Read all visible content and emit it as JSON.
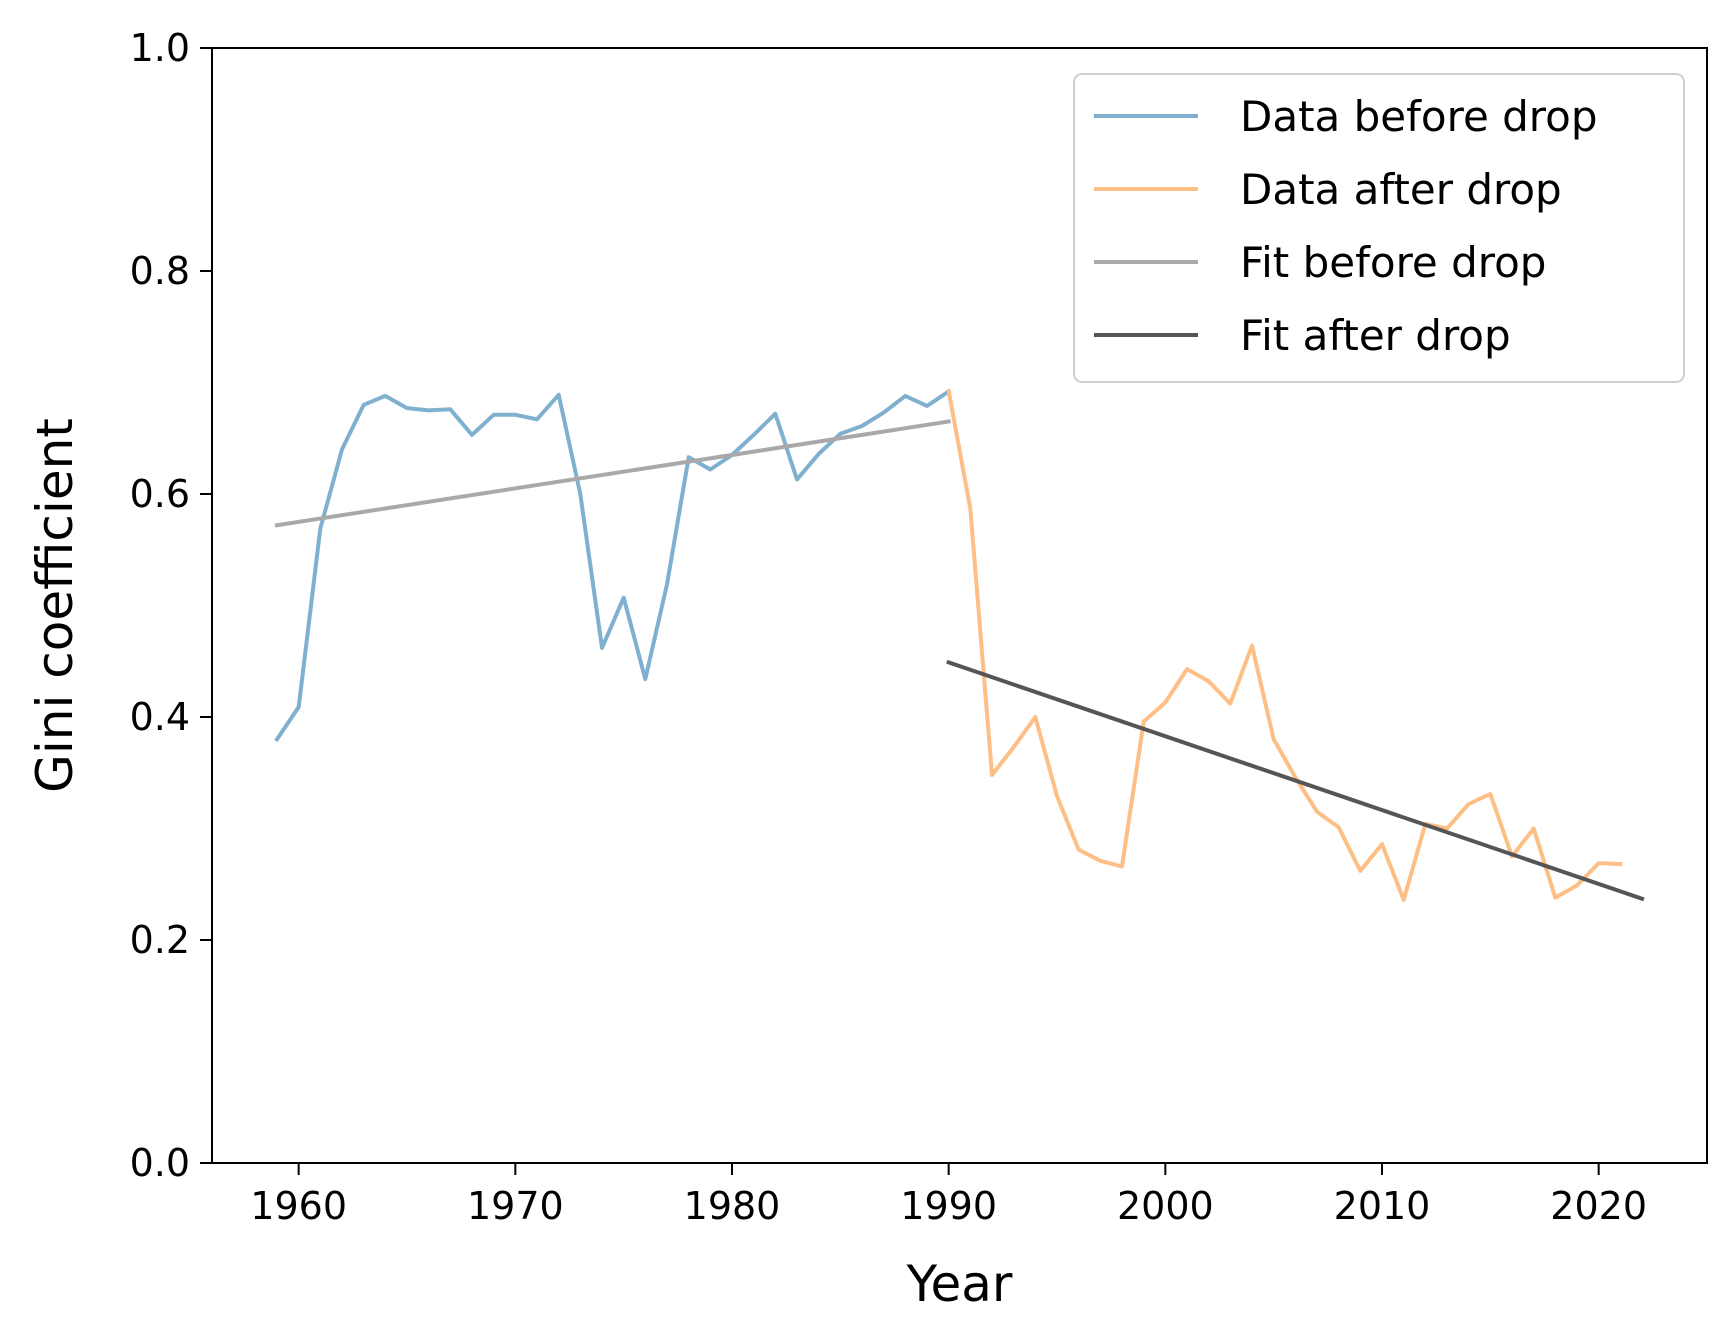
{
  "chart_data": {
    "type": "line",
    "title": "",
    "xlabel": "Year",
    "ylabel": "Gini coefficient",
    "xlim": [
      1956,
      2025
    ],
    "ylim": [
      0.0,
      1.0
    ],
    "xticks": [
      1960,
      1970,
      1980,
      1990,
      2000,
      2010,
      2020
    ],
    "yticks": [
      0.0,
      0.2,
      0.4,
      0.6,
      0.8,
      1.0
    ],
    "ytick_labels": [
      "0.0",
      "0.2",
      "0.4",
      "0.6",
      "0.8",
      "1.0"
    ],
    "grid": false,
    "legend_position": "top-right",
    "series": [
      {
        "name": "Data before drop",
        "color": "#7fb0d0",
        "x": [
          1959,
          1960,
          1961,
          1962,
          1963,
          1964,
          1965,
          1966,
          1967,
          1968,
          1969,
          1970,
          1971,
          1972,
          1973,
          1974,
          1975,
          1976,
          1977,
          1978,
          1979,
          1980,
          1981,
          1982,
          1983,
          1984,
          1985,
          1986,
          1987,
          1988,
          1989,
          1990
        ],
        "y": [
          0.38,
          0.409,
          0.569,
          0.64,
          0.68,
          0.688,
          0.677,
          0.675,
          0.676,
          0.653,
          0.671,
          0.671,
          0.667,
          0.689,
          0.6,
          0.462,
          0.507,
          0.434,
          0.519,
          0.633,
          0.622,
          0.635,
          0.653,
          0.672,
          0.613,
          0.636,
          0.654,
          0.661,
          0.673,
          0.688,
          0.679,
          0.692
        ]
      },
      {
        "name": "Data after drop",
        "color": "#fdbf86",
        "x": [
          1990,
          1991,
          1992,
          1993,
          1994,
          1995,
          1996,
          1997,
          1998,
          1999,
          2000,
          2001,
          2002,
          2003,
          2004,
          2005,
          2006,
          2007,
          2008,
          2009,
          2010,
          2011,
          2012,
          2013,
          2014,
          2015,
          2016,
          2017,
          2018,
          2019,
          2020,
          2021
        ],
        "y": [
          0.692,
          0.587,
          0.348,
          0.373,
          0.4,
          0.329,
          0.281,
          0.271,
          0.266,
          0.396,
          0.413,
          0.443,
          0.432,
          0.412,
          0.464,
          0.38,
          0.346,
          0.315,
          0.301,
          0.262,
          0.286,
          0.236,
          0.304,
          0.3,
          0.322,
          0.331,
          0.275,
          0.3,
          0.238,
          0.249,
          0.269,
          0.268
        ]
      },
      {
        "name": "Fit before drop",
        "color": "#a9a9a9",
        "x": [
          1959,
          1990
        ],
        "y": [
          0.572,
          0.665
        ]
      },
      {
        "name": "Fit after drop",
        "color": "#555555",
        "x": [
          1990,
          2022
        ],
        "y": [
          0.449,
          0.237
        ]
      }
    ]
  }
}
